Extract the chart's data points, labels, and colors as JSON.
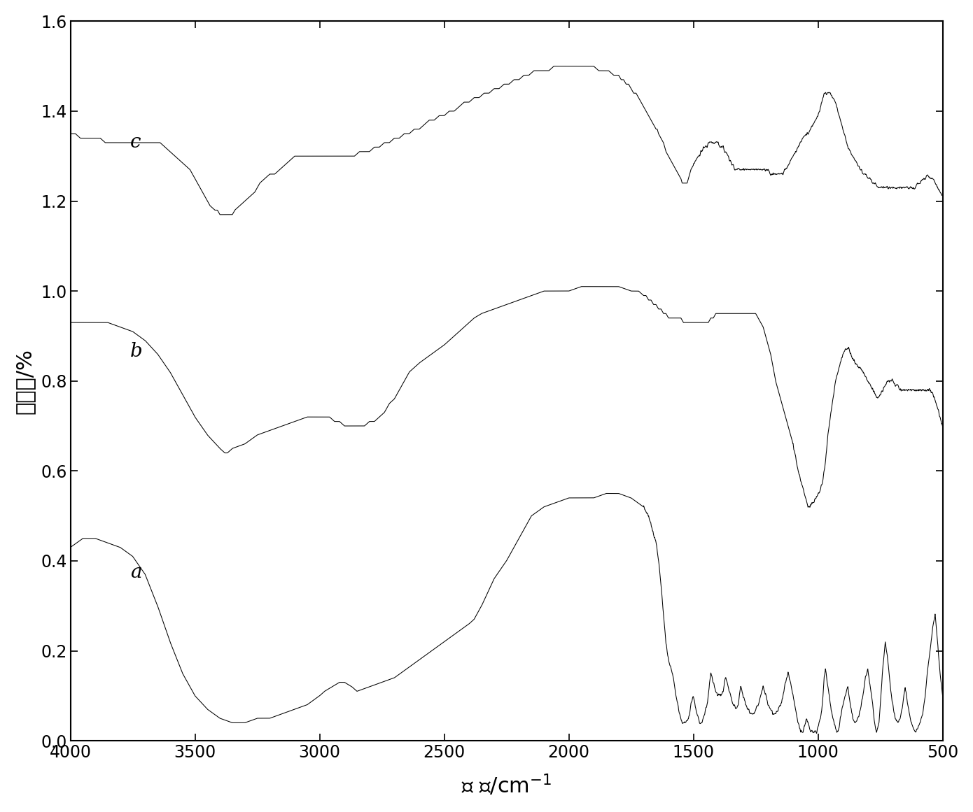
{
  "xlim": [
    4000,
    500
  ],
  "ylim": [
    0.0,
    1.6
  ],
  "yticks": [
    0.0,
    0.2,
    0.4,
    0.6,
    0.8,
    1.0,
    1.2,
    1.4,
    1.6
  ],
  "xticks": [
    4000,
    3500,
    3000,
    2500,
    2000,
    1500,
    1000,
    500
  ],
  "line_color": "#000000",
  "label_a": "a",
  "label_b": "b",
  "label_c": "c",
  "background_color": "#ffffff",
  "figsize": [
    13.9,
    11.61
  ],
  "dpi": 100,
  "xlabel_parts": [
    "波 数/cm",
    "-1"
  ],
  "ylabel": "透过率/%"
}
